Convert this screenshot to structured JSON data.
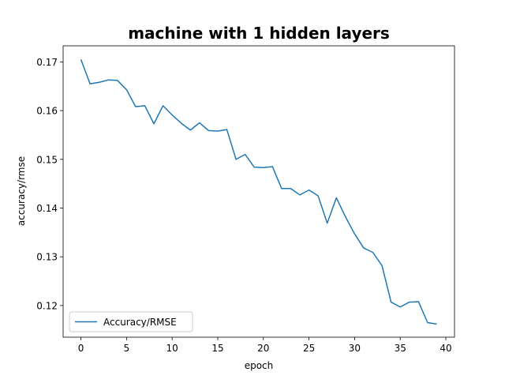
{
  "chart_data": {
    "type": "line",
    "title": "machine with 1 hidden layers",
    "xlabel": "epoch",
    "ylabel": "accuracy/rmse",
    "xlim": [
      -1.95,
      40.95
    ],
    "ylim": [
      0.1135,
      0.1733
    ],
    "xticks": [
      0,
      5,
      10,
      15,
      20,
      25,
      30,
      35,
      40
    ],
    "xtick_labels": [
      "0",
      "5",
      "10",
      "15",
      "20",
      "25",
      "30",
      "35",
      "40"
    ],
    "yticks": [
      0.12,
      0.13,
      0.14,
      0.15,
      0.16,
      0.17
    ],
    "ytick_labels": [
      "0.12",
      "0.13",
      "0.14",
      "0.15",
      "0.16",
      "0.17"
    ],
    "grid": false,
    "legend": {
      "position": "lower left",
      "entries": [
        "Accuracy/RMSE"
      ]
    },
    "series": [
      {
        "name": "Accuracy/RMSE",
        "color": "#1f77b4",
        "x": [
          0,
          1,
          2,
          3,
          4,
          5,
          6,
          7,
          8,
          9,
          10,
          11,
          12,
          13,
          14,
          15,
          16,
          17,
          18,
          19,
          20,
          21,
          22,
          23,
          24,
          25,
          26,
          27,
          28,
          29,
          30,
          31,
          32,
          33,
          34,
          35,
          36,
          37,
          38,
          39
        ],
        "values": [
          0.1705,
          0.1655,
          0.1658,
          0.1663,
          0.1662,
          0.1643,
          0.1608,
          0.161,
          0.1573,
          0.161,
          0.1591,
          0.1574,
          0.156,
          0.1575,
          0.1559,
          0.1558,
          0.1561,
          0.15,
          0.151,
          0.1484,
          0.1483,
          0.1485,
          0.144,
          0.144,
          0.1427,
          0.1437,
          0.1425,
          0.1369,
          0.1421,
          0.1382,
          0.1347,
          0.1318,
          0.1309,
          0.1282,
          0.1207,
          0.1197,
          0.1207,
          0.1208,
          0.1165,
          0.1162
        ]
      }
    ]
  }
}
